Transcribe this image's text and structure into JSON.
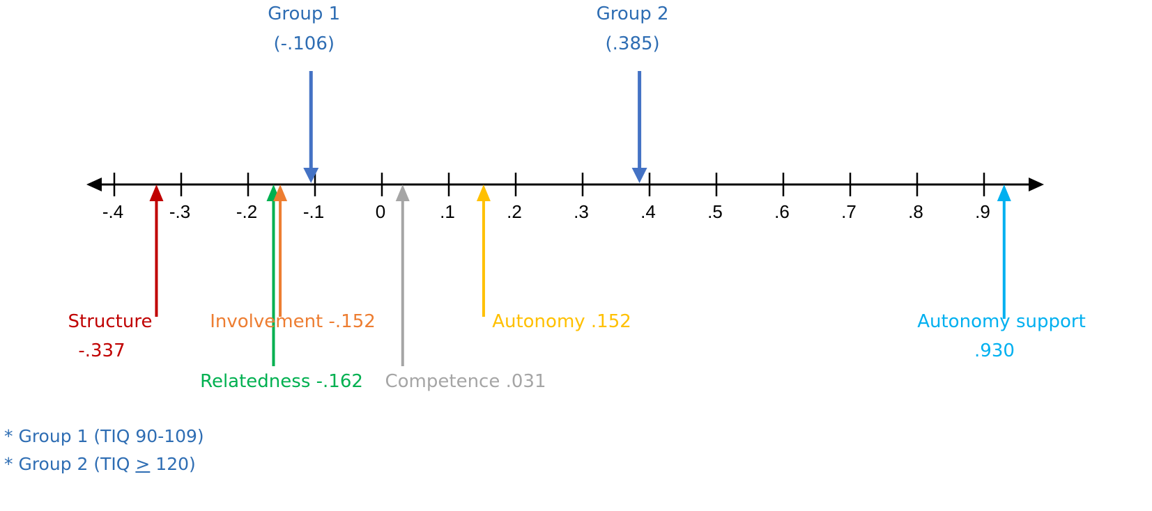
{
  "axis": {
    "ticks": [
      {
        "value": -0.4,
        "label": "-.4"
      },
      {
        "value": -0.3,
        "label": "-.3"
      },
      {
        "value": -0.2,
        "label": "-.2"
      },
      {
        "value": -0.1,
        "label": "-.1"
      },
      {
        "value": 0.0,
        "label": "0"
      },
      {
        "value": 0.1,
        "label": ".1"
      },
      {
        "value": 0.2,
        "label": ".2"
      },
      {
        "value": 0.3,
        "label": ".3"
      },
      {
        "value": 0.4,
        "label": ".4"
      },
      {
        "value": 0.5,
        "label": ".5"
      },
      {
        "value": 0.6,
        "label": ".6"
      },
      {
        "value": 0.7,
        "label": ".7"
      },
      {
        "value": 0.8,
        "label": ".8"
      },
      {
        "value": 0.9,
        "label": ".9"
      }
    ]
  },
  "groups": [
    {
      "id": "group-1",
      "name": "Group 1",
      "value_text": "(-.106)",
      "value": -0.106,
      "color": "#4472c4"
    },
    {
      "id": "group-2",
      "name": "Group 2",
      "value_text": "(.385)",
      "value": 0.385,
      "color": "#4472c4"
    }
  ],
  "measures": [
    {
      "id": "structure",
      "lines": [
        "Structure",
        "-.337"
      ],
      "value": -0.337,
      "color": "#c00000"
    },
    {
      "id": "relatedness",
      "lines": [
        "Relatedness -.162"
      ],
      "value": -0.162,
      "color": "#00b050"
    },
    {
      "id": "involvement",
      "lines": [
        "Involvement -.152"
      ],
      "value": -0.152,
      "color": "#ed7d31"
    },
    {
      "id": "competence",
      "lines": [
        "Competence .031"
      ],
      "value": 0.031,
      "color": "#a5a5a5"
    },
    {
      "id": "autonomy",
      "lines": [
        "Autonomy .152"
      ],
      "value": 0.152,
      "color": "#ffc000"
    },
    {
      "id": "autonomy-support",
      "lines": [
        "Autonomy support",
        ".930"
      ],
      "value": 0.93,
      "color": "#00b0f0"
    }
  ],
  "notes": {
    "group1": "* Group 1 (TIQ 90-109)",
    "group2_prefix": "* Group 2 (TIQ ",
    "group2_symbol": ">",
    "group2_suffix": " 120)"
  }
}
